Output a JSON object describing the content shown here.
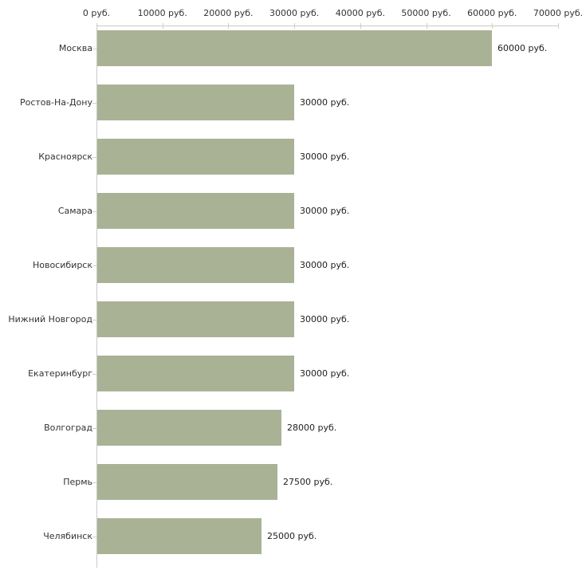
{
  "chart_data": {
    "type": "bar",
    "orientation": "horizontal",
    "title": "",
    "xlabel": "",
    "ylabel": "",
    "xlim": [
      0,
      70000
    ],
    "grid": false,
    "legend": false,
    "categories": [
      "Москва",
      "Ростов-На-Дону",
      "Красноярск",
      "Самара",
      "Новосибирск",
      "Нижний Новгород",
      "Екатеринбург",
      "Волгоград",
      "Пермь",
      "Челябинск"
    ],
    "values": [
      60000,
      30000,
      30000,
      30000,
      30000,
      30000,
      30000,
      28000,
      27500,
      25000
    ],
    "value_labels": [
      "60000 руб.",
      "30000 руб.",
      "30000 руб.",
      "30000 руб.",
      "30000 руб.",
      "30000 руб.",
      "30000 руб.",
      "28000 руб.",
      "27500 руб.",
      "25000 руб."
    ],
    "x_ticks": [
      {
        "value": 0,
        "label": "0 руб."
      },
      {
        "value": 10000,
        "label": "10000 руб."
      },
      {
        "value": 20000,
        "label": "20000 руб."
      },
      {
        "value": 30000,
        "label": "30000 руб."
      },
      {
        "value": 40000,
        "label": "40000 руб."
      },
      {
        "value": 50000,
        "label": "50000 руб."
      },
      {
        "value": 60000,
        "label": "60000 руб."
      },
      {
        "value": 70000,
        "label": "70000 руб."
      }
    ],
    "colors": {
      "bar": "#aab296",
      "axis_line": "#c9c9c9",
      "tick_mark": "#cfd3ae",
      "text": "#333333",
      "background": "#ffffff"
    }
  }
}
